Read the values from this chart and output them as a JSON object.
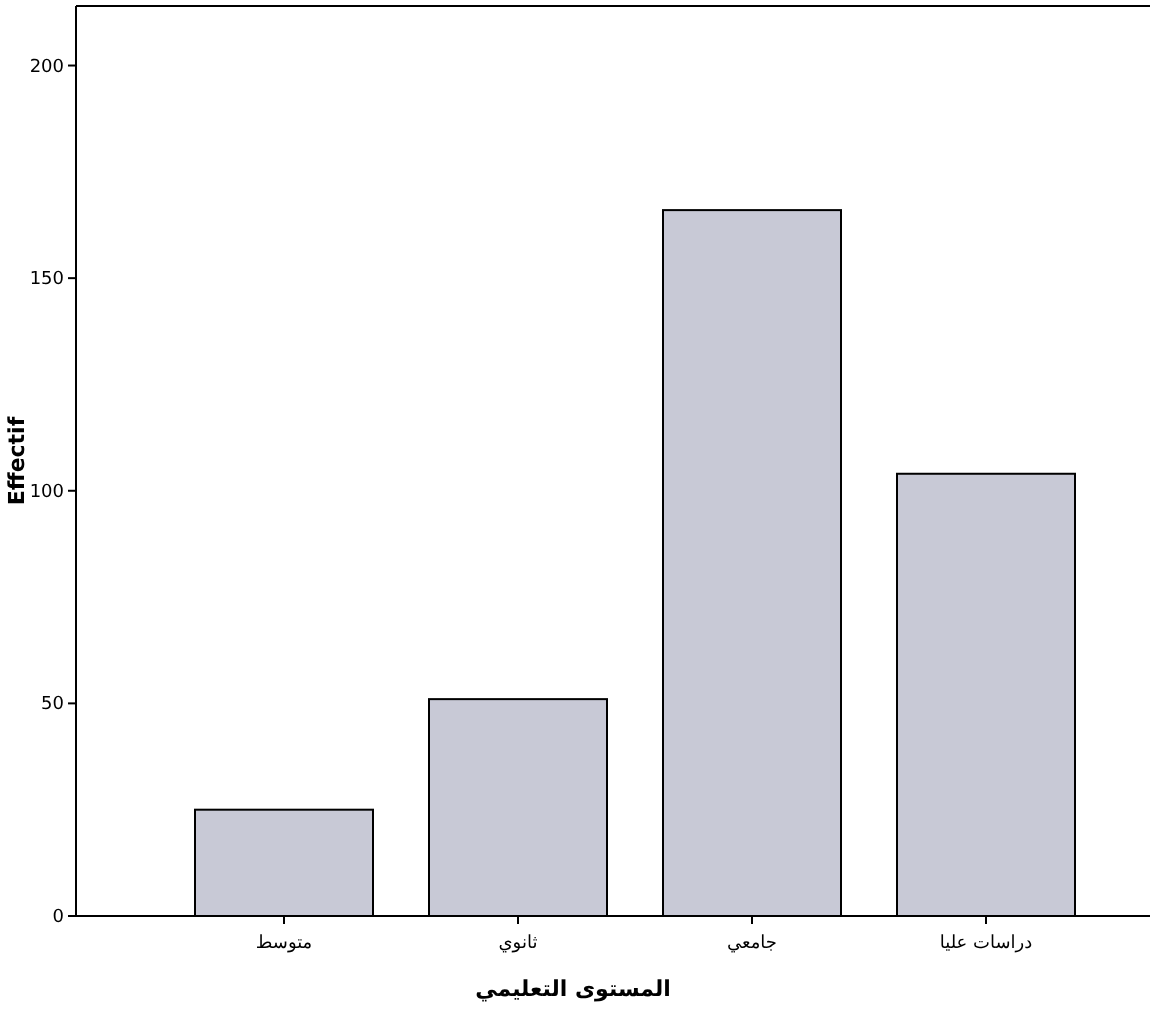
{
  "chart_data": {
    "type": "bar",
    "xlabel": "المستوى التعليمي",
    "ylabel": "Effectif",
    "categories": [
      "متوسط",
      "ثانوي",
      "جامعي",
      "دراسات عليا"
    ],
    "values": [
      25,
      51,
      166,
      104
    ],
    "color": "#c8c9d6",
    "ylim": [
      0,
      214
    ],
    "yticks": [
      0,
      50,
      100,
      150,
      200
    ]
  }
}
